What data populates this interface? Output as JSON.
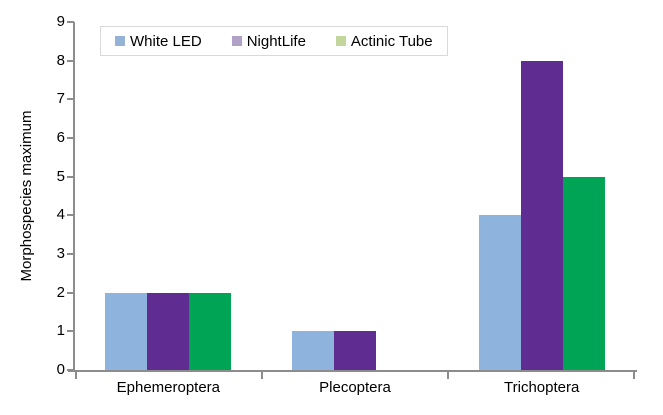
{
  "chart_data": {
    "type": "bar",
    "title": "",
    "categories": [
      "Ephemeroptera",
      "Plecoptera",
      "Trichoptera"
    ],
    "series": [
      {
        "name": "White LED",
        "values": [
          2,
          1,
          4
        ],
        "bar_color": "#8EB3DC",
        "legend_color": "#95B3D7"
      },
      {
        "name": "NightLife",
        "values": [
          2,
          1,
          8
        ],
        "bar_color": "#5F2D91",
        "legend_color": "#B2A1C7"
      },
      {
        "name": "Actinic Tube",
        "values": [
          2,
          0,
          5
        ],
        "bar_color": "#00A455",
        "legend_color": "#C3D69B"
      }
    ],
    "xlabel": "",
    "ylabel": "Morphospecies maximum",
    "ylim": [
      0,
      9
    ],
    "yticks": [
      0,
      1,
      2,
      3,
      4,
      5,
      6,
      7,
      8,
      9
    ],
    "grid": false,
    "legend_position": "top-inside",
    "axis_color": "#8C8C8C",
    "legend_border_color": "#D9D9D9",
    "text_color": "#000000"
  }
}
